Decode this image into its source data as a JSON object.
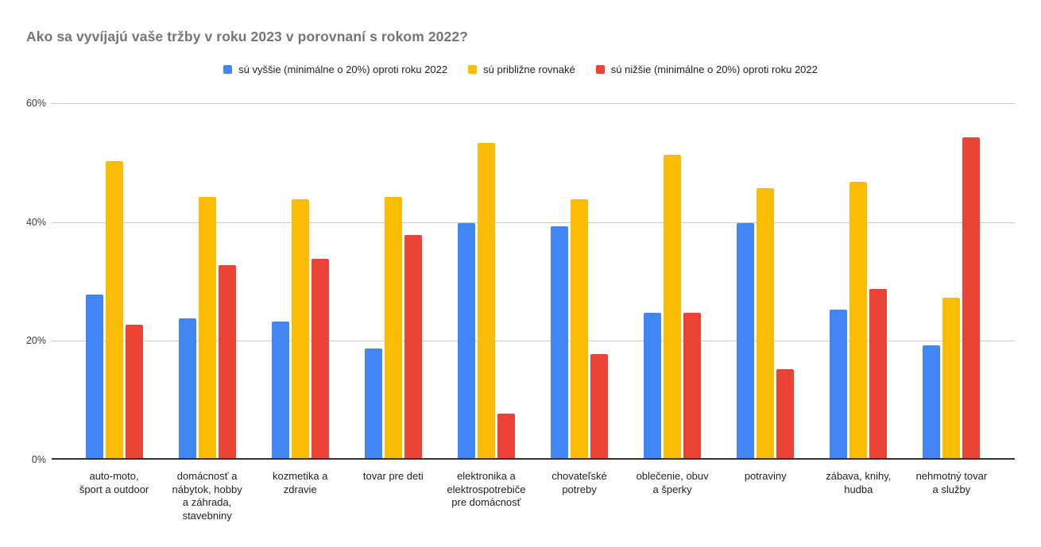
{
  "chart_data": {
    "type": "bar",
    "title": "Ako sa vyvíjajú vaše tržby v roku 2023 v porovnaní s rokom 2022?",
    "categories": [
      "auto-moto,\nšport a outdoor",
      "domácnosť a\nnábytok, hobby\na záhrada,\nstavebniny",
      "kozmetika a\nzdravie",
      "tovar pre deti",
      "elektronika a\nelektrospotrebiče\npre domácnosť",
      "chovateľské\npotreby",
      "oblečenie, obuv\na šperky",
      "potraviny",
      "zábava, knihy,\nhudba",
      "nehmotný tovar\na služby"
    ],
    "series": [
      {
        "key": "higher",
        "name": "sú vyššie (minimálne o 20%) oproti roku 2022",
        "color": "#4285F4",
        "values": [
          27.5,
          23.5,
          23,
          18.5,
          39.5,
          39,
          24.5,
          39.5,
          25,
          19
        ]
      },
      {
        "key": "same",
        "name": "sú približne rovnaké",
        "color": "#FBBC04",
        "values": [
          50,
          44,
          43.5,
          44,
          53,
          43.5,
          51,
          45.5,
          46.5,
          27
        ]
      },
      {
        "key": "lower",
        "name": "sú nižšie (minimálne o 20%) oproti roku 2022",
        "color": "#EA4335",
        "values": [
          22.5,
          32.5,
          33.5,
          37.5,
          7.5,
          17.5,
          24.5,
          15,
          28.5,
          54
        ]
      }
    ],
    "ylabel": "",
    "xlabel": "",
    "ylim": [
      0,
      60
    ],
    "yticks": [
      {
        "value": 0,
        "label": "0%"
      },
      {
        "value": 20,
        "label": "20%"
      },
      {
        "value": 40,
        "label": "40%"
      },
      {
        "value": 60,
        "label": "60%"
      }
    ],
    "grid": true,
    "legend_position": "top",
    "colors": {
      "title": "#757575",
      "gridline": "#cccccc",
      "axis_line": "#333333",
      "tick_text": "#3c3c3c",
      "category_text": "#212121",
      "background": "#ffffff"
    }
  }
}
